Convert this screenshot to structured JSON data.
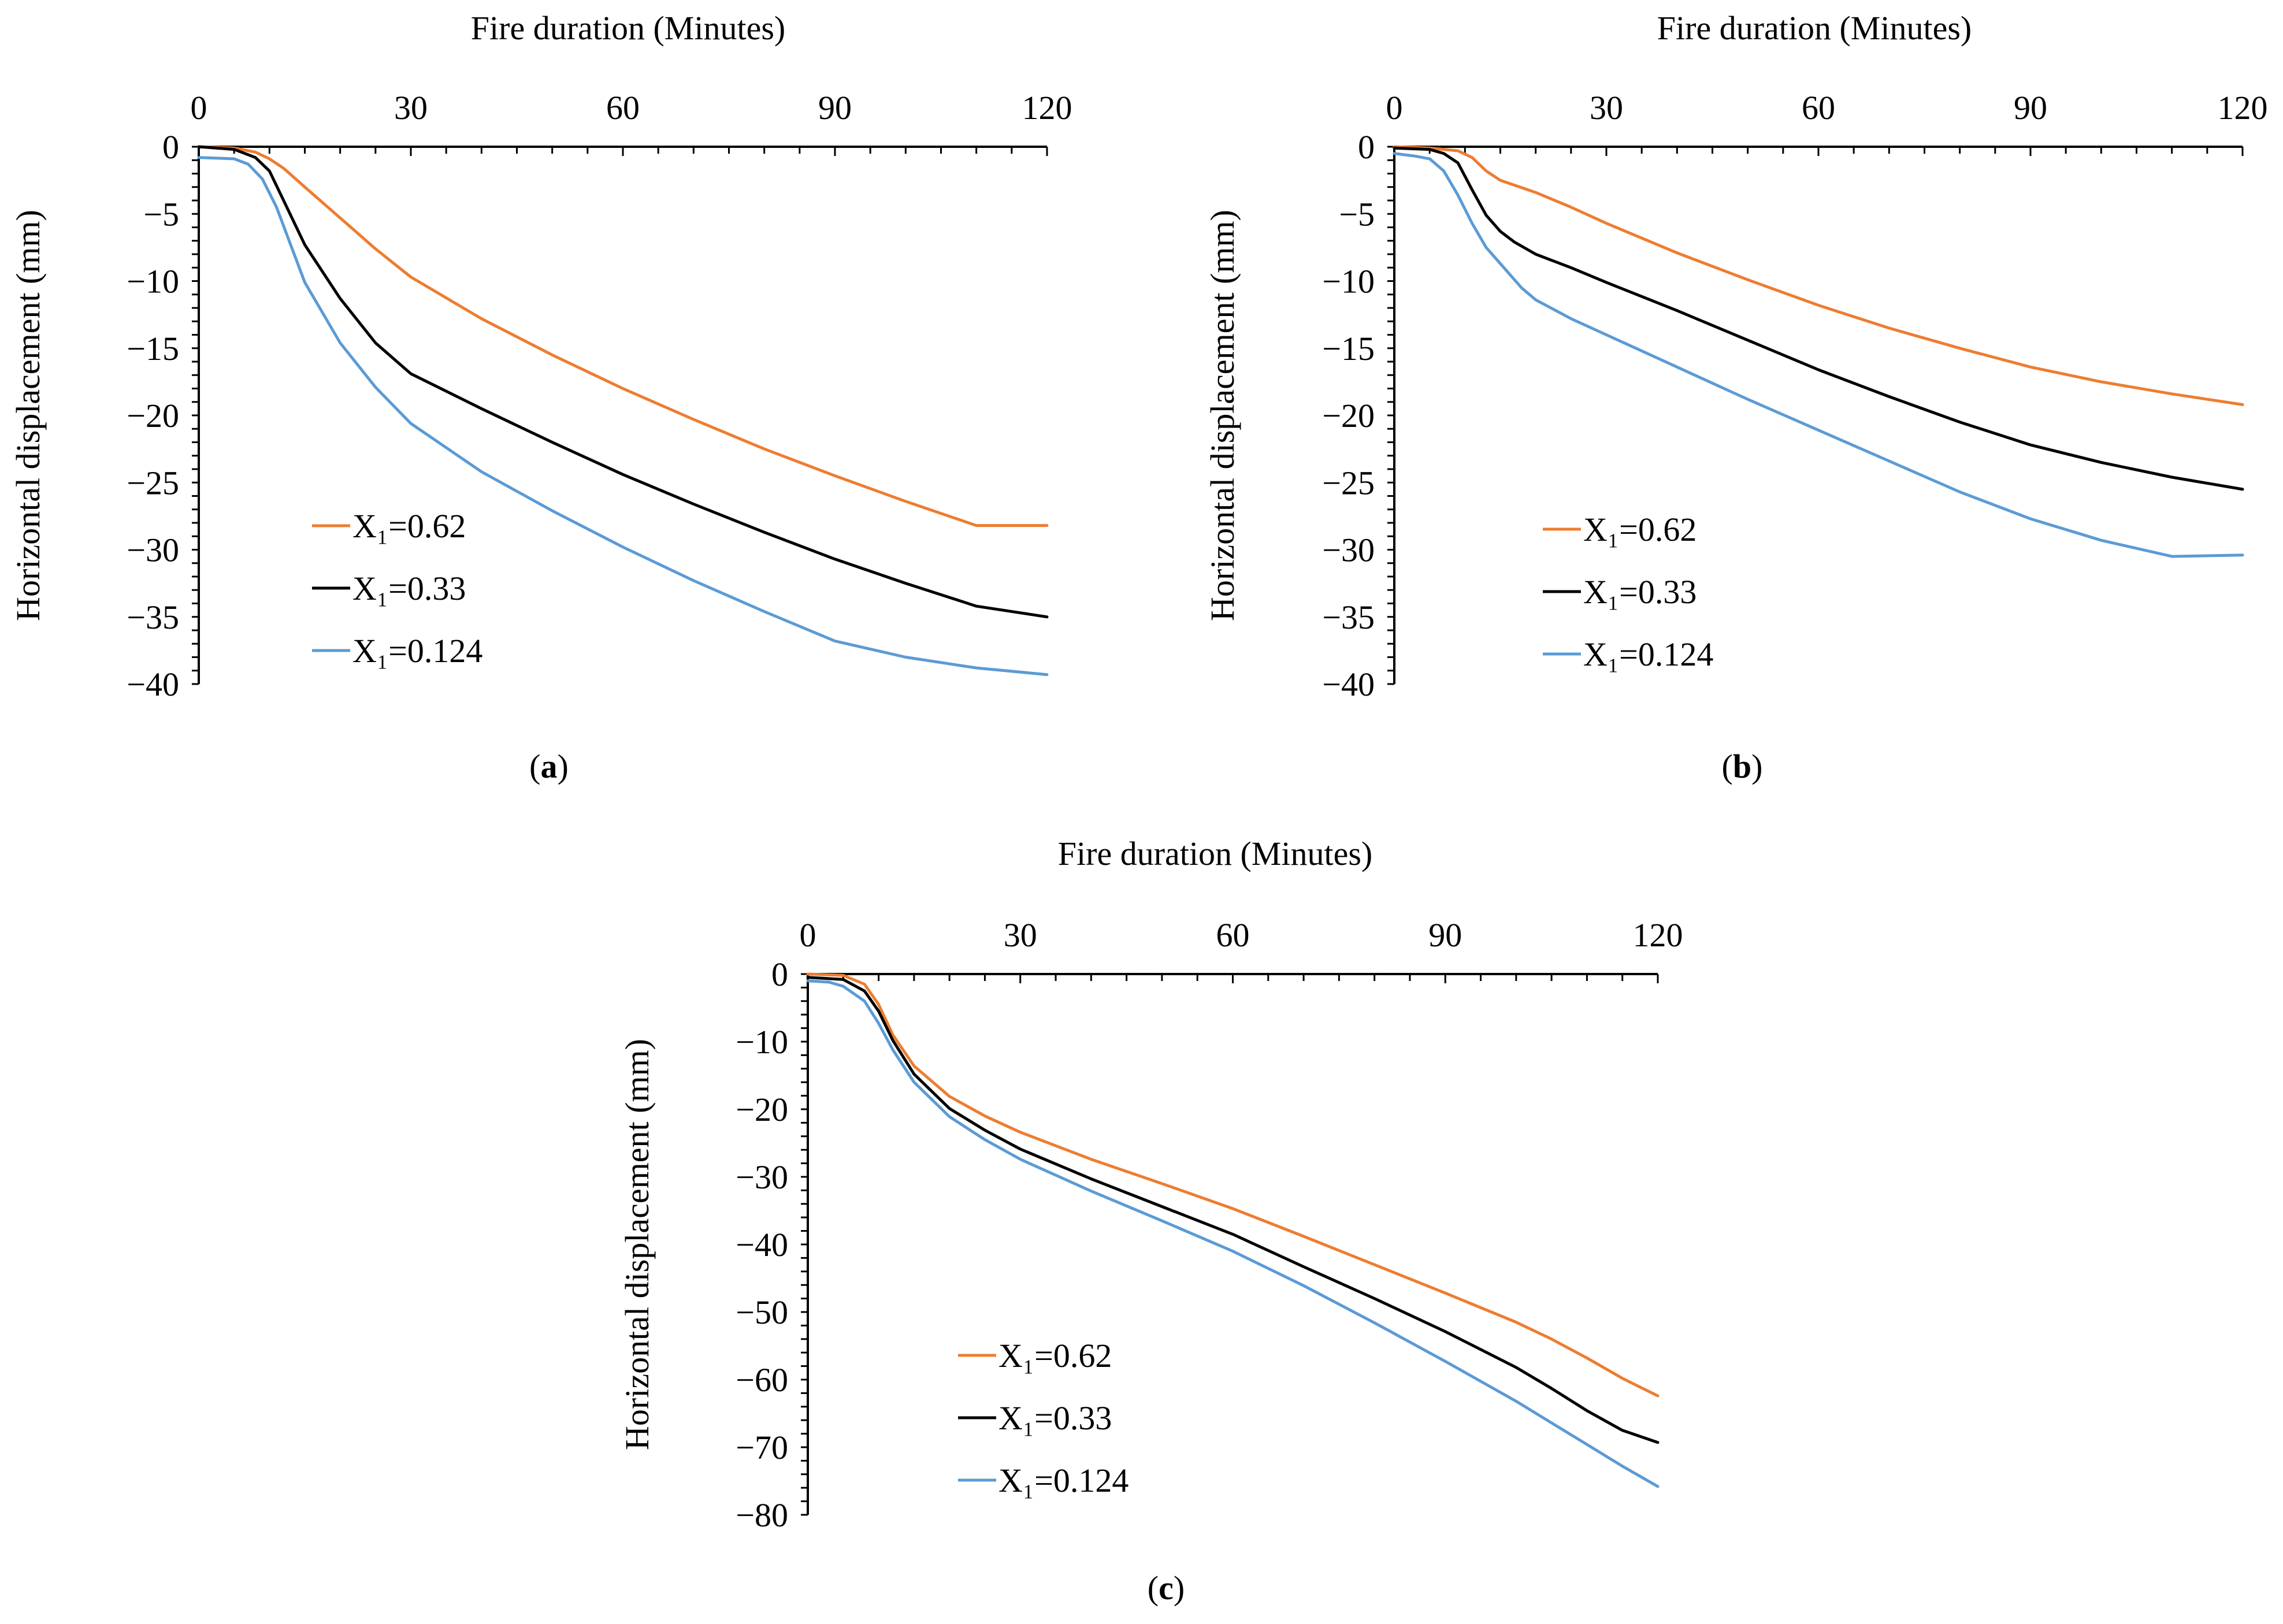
{
  "chart_data": [
    {
      "id": "a",
      "type": "line",
      "panel_label": "a",
      "xlabel": "Fire duration (Minutes)",
      "ylabel": "Horizontal displacement (mm)",
      "xlim": [
        0,
        120
      ],
      "ylim": [
        -40,
        0
      ],
      "xticks": [
        0,
        30,
        60,
        90,
        120
      ],
      "yticks": [
        0,
        -5,
        -10,
        -15,
        -20,
        -25,
        -30,
        -35,
        -40
      ],
      "x_minor_step": 5,
      "y_minor_step": 1,
      "x_axis_position": "top",
      "legend_position": "lower-left",
      "series": [
        {
          "name": "X₁=0.62",
          "color": "#ED7D31",
          "x": [
            0,
            5,
            8,
            10,
            12,
            15,
            20,
            25,
            30,
            40,
            50,
            60,
            70,
            80,
            90,
            100,
            110,
            120
          ],
          "y": [
            0,
            -0.1,
            -0.4,
            -0.9,
            -1.6,
            -3.0,
            -5.3,
            -7.6,
            -9.7,
            -12.8,
            -15.5,
            -18.0,
            -20.3,
            -22.5,
            -24.5,
            -26.4,
            -28.2,
            -28.2
          ]
        },
        {
          "name": "X₁=0.33",
          "color": "#000000",
          "x": [
            0,
            5,
            8,
            10,
            12,
            15,
            20,
            25,
            30,
            35,
            40,
            50,
            60,
            70,
            80,
            90,
            100,
            110,
            120
          ],
          "y": [
            0,
            -0.2,
            -0.8,
            -1.8,
            -4.0,
            -7.3,
            -11.3,
            -14.6,
            -16.9,
            -18.2,
            -19.5,
            -22.0,
            -24.4,
            -26.6,
            -28.7,
            -30.7,
            -32.5,
            -34.2,
            -35.0
          ]
        },
        {
          "name": "X₁=0.124",
          "color": "#5B9BD5",
          "x": [
            0,
            5,
            7,
            9,
            11,
            13,
            15,
            20,
            25,
            30,
            40,
            50,
            60,
            70,
            80,
            90,
            100,
            110,
            120
          ],
          "y": [
            -0.8,
            -0.9,
            -1.3,
            -2.4,
            -4.5,
            -7.3,
            -10.1,
            -14.6,
            -17.9,
            -20.6,
            -24.2,
            -27.1,
            -29.8,
            -32.3,
            -34.6,
            -36.8,
            -38.0,
            -38.8,
            -39.3
          ]
        }
      ]
    },
    {
      "id": "b",
      "type": "line",
      "panel_label": "b",
      "xlabel": "Fire duration (Minutes)",
      "ylabel": "Horizontal displacement (mm)",
      "xlim": [
        0,
        120
      ],
      "ylim": [
        -40,
        0
      ],
      "xticks": [
        0,
        30,
        60,
        90,
        120
      ],
      "yticks": [
        0,
        -5,
        -10,
        -15,
        -20,
        -25,
        -30,
        -35,
        -40
      ],
      "x_minor_step": 5,
      "y_minor_step": 1,
      "x_axis_position": "top",
      "legend_position": "lower-left",
      "series": [
        {
          "name": "X₁=0.62",
          "color": "#ED7D31",
          "x": [
            0,
            5,
            9,
            11,
            13,
            15,
            20,
            25,
            30,
            40,
            50,
            60,
            70,
            80,
            90,
            100,
            110,
            120
          ],
          "y": [
            0,
            -0.1,
            -0.3,
            -0.8,
            -1.8,
            -2.5,
            -3.4,
            -4.5,
            -5.7,
            -7.9,
            -9.9,
            -11.8,
            -13.5,
            -15.0,
            -16.4,
            -17.5,
            -18.4,
            -19.2
          ]
        },
        {
          "name": "X₁=0.33",
          "color": "#000000",
          "x": [
            0,
            5,
            7,
            9,
            11,
            13,
            15,
            17,
            20,
            25,
            30,
            40,
            50,
            60,
            70,
            80,
            90,
            100,
            110,
            120
          ],
          "y": [
            -0.1,
            -0.2,
            -0.5,
            -1.2,
            -3.2,
            -5.1,
            -6.3,
            -7.1,
            -8.0,
            -9.0,
            -10.1,
            -12.2,
            -14.4,
            -16.6,
            -18.6,
            -20.5,
            -22.2,
            -23.5,
            -24.6,
            -25.5
          ]
        },
        {
          "name": "X₁=0.124",
          "color": "#5B9BD5",
          "x": [
            0,
            3,
            5,
            7,
            9,
            11,
            13,
            15,
            18,
            20,
            25,
            30,
            40,
            50,
            60,
            70,
            80,
            90,
            100,
            110,
            120
          ],
          "y": [
            -0.5,
            -0.7,
            -0.9,
            -1.8,
            -3.6,
            -5.7,
            -7.5,
            -8.7,
            -10.5,
            -11.4,
            -12.8,
            -14.0,
            -16.4,
            -18.8,
            -21.1,
            -23.4,
            -25.7,
            -27.7,
            -29.3,
            -30.5,
            -30.4
          ]
        }
      ]
    },
    {
      "id": "c",
      "type": "line",
      "panel_label": "c",
      "xlabel": "Fire duration (Minutes)",
      "ylabel": "Horizontal displacement (mm)",
      "xlim": [
        0,
        120
      ],
      "ylim": [
        -80,
        0
      ],
      "xticks": [
        0,
        30,
        60,
        90,
        120
      ],
      "yticks": [
        0,
        -10,
        -20,
        -30,
        -40,
        -50,
        -60,
        -70,
        -80
      ],
      "x_minor_step": 5,
      "y_minor_step": 2,
      "x_axis_position": "top",
      "legend_position": "lower-left",
      "series": [
        {
          "name": "X₁=0.62",
          "color": "#ED7D31",
          "x": [
            0,
            5,
            8,
            10,
            12,
            15,
            20,
            25,
            30,
            40,
            50,
            60,
            70,
            80,
            90,
            100,
            105,
            110,
            115,
            120
          ],
          "y": [
            0,
            -0.2,
            -1.5,
            -4.5,
            -9.0,
            -13.6,
            -18.1,
            -21.0,
            -23.4,
            -27.4,
            -31.0,
            -34.7,
            -38.8,
            -43.0,
            -47.2,
            -51.5,
            -54.0,
            -56.8,
            -59.8,
            -62.4
          ]
        },
        {
          "name": "X₁=0.33",
          "color": "#000000",
          "x": [
            0,
            5,
            8,
            10,
            12,
            15,
            20,
            25,
            30,
            40,
            50,
            60,
            70,
            80,
            90,
            100,
            105,
            110,
            115,
            120
          ],
          "y": [
            -0.5,
            -0.8,
            -2.5,
            -5.5,
            -9.8,
            -14.8,
            -19.9,
            -23.1,
            -25.9,
            -30.3,
            -34.4,
            -38.5,
            -43.3,
            -48.0,
            -52.9,
            -58.2,
            -61.3,
            -64.6,
            -67.5,
            -69.3
          ]
        },
        {
          "name": "X₁=0.124",
          "color": "#5B9BD5",
          "x": [
            0,
            3,
            5,
            8,
            10,
            12,
            15,
            20,
            25,
            30,
            40,
            50,
            60,
            70,
            80,
            90,
            100,
            105,
            110,
            115,
            120
          ],
          "y": [
            -1.0,
            -1.2,
            -1.8,
            -4.0,
            -7.3,
            -11.2,
            -16.0,
            -21.1,
            -24.5,
            -27.4,
            -32.1,
            -36.5,
            -41.0,
            -46.1,
            -51.6,
            -57.3,
            -63.2,
            -66.4,
            -69.6,
            -72.8,
            -75.8
          ]
        }
      ]
    }
  ]
}
